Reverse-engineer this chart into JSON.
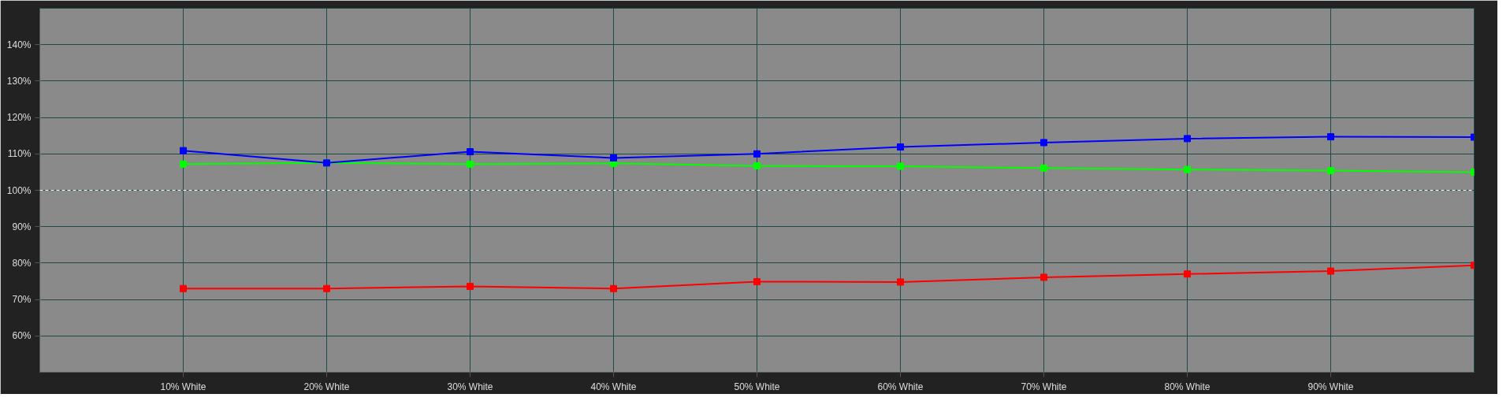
{
  "chart_data": {
    "type": "line",
    "x": [
      10,
      20,
      30,
      40,
      50,
      60,
      70,
      80,
      90,
      100
    ],
    "series": [
      {
        "color": "#0000ff",
        "values": [
          110.9,
          107.5,
          110.6,
          108.9,
          110.0,
          111.9,
          113.1,
          114.2,
          114.7,
          114.6
        ]
      },
      {
        "color": "#00ff00",
        "values": [
          107.2,
          107.5,
          107.2,
          107.4,
          106.7,
          106.6,
          106.1,
          105.7,
          105.4,
          105.0
        ]
      },
      {
        "color": "#ff0000",
        "values": [
          73.0,
          73.0,
          73.6,
          73.0,
          74.9,
          74.8,
          76.1,
          77.0,
          77.8,
          79.4
        ]
      }
    ],
    "xlim": [
      0,
      100
    ],
    "xticks": [
      {
        "value": 10,
        "label": "10% White"
      },
      {
        "value": 20,
        "label": "20% White"
      },
      {
        "value": 30,
        "label": "30% White"
      },
      {
        "value": 40,
        "label": "40% White"
      },
      {
        "value": 50,
        "label": "50% White"
      },
      {
        "value": 60,
        "label": "60% White"
      },
      {
        "value": 70,
        "label": "70% White"
      },
      {
        "value": 80,
        "label": "80% White"
      },
      {
        "value": 90,
        "label": "90% White"
      }
    ],
    "ylim": [
      50,
      150
    ],
    "yticks": [
      {
        "value": 60,
        "label": "60%"
      },
      {
        "value": 70,
        "label": "70%"
      },
      {
        "value": 80,
        "label": "80%"
      },
      {
        "value": 90,
        "label": "90%"
      },
      {
        "value": 100,
        "label": "100%"
      },
      {
        "value": 110,
        "label": "110%"
      },
      {
        "value": 120,
        "label": "120%"
      },
      {
        "value": 130,
        "label": "130%"
      },
      {
        "value": 140,
        "label": "140%"
      }
    ],
    "ref_lines": [
      {
        "axis": "y",
        "value": 100,
        "color": "#ffffff",
        "line_style": "dashed"
      }
    ],
    "grid": true,
    "marker": "square",
    "line_style": "solid"
  }
}
